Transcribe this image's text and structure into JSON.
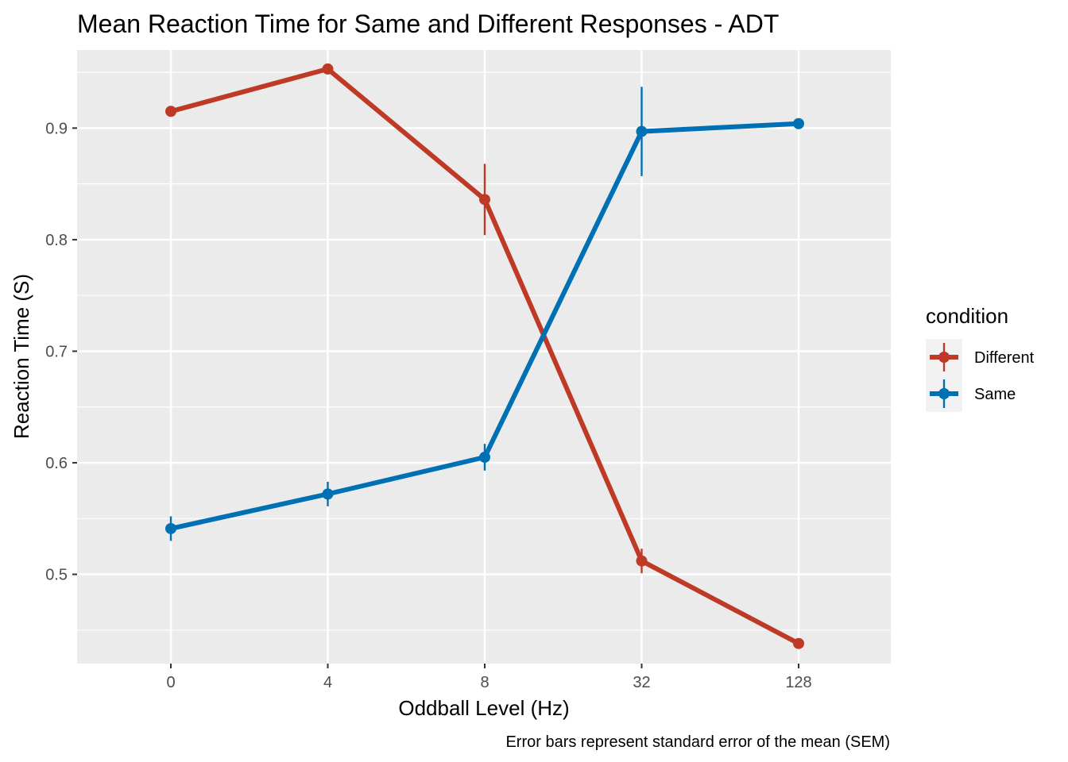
{
  "chart_data": {
    "type": "line",
    "title": "Mean Reaction Time for Same and Different Responses - ADT",
    "xlabel": "Oddball Level (Hz)",
    "ylabel": "Reaction Time (S)",
    "caption": "Error bars represent standard error of the mean (SEM)",
    "categories": [
      "0",
      "4",
      "8",
      "32",
      "128"
    ],
    "y_ticks": [
      "0.5",
      "0.6",
      "0.7",
      "0.8",
      "0.9"
    ],
    "ylim": [
      0.42,
      0.97
    ],
    "grid": true,
    "legend": {
      "title": "condition",
      "position": "right"
    },
    "series": [
      {
        "name": "Different",
        "color": "#BE3A26",
        "values": [
          0.915,
          0.953,
          0.836,
          0.512,
          0.438
        ],
        "sem": [
          0.0,
          0.0,
          0.032,
          0.011,
          0.0
        ]
      },
      {
        "name": "Same",
        "color": "#0070B5",
        "values": [
          0.541,
          0.572,
          0.605,
          0.897,
          0.904
        ],
        "sem": [
          0.011,
          0.011,
          0.012,
          0.04,
          0.0
        ]
      }
    ]
  }
}
